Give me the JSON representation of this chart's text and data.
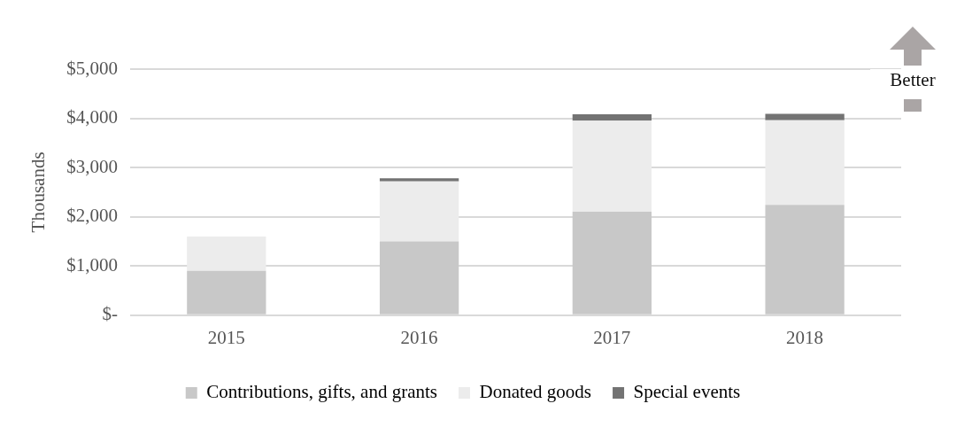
{
  "chart_data": {
    "type": "bar",
    "ylabel": "Thousands",
    "categories": [
      "2015",
      "2016",
      "2017",
      "2018"
    ],
    "stacked": true,
    "series": [
      {
        "name": "Contributions, gifts, and grants",
        "color": "#c8c8c8",
        "values": [
          900,
          1500,
          2100,
          2240
        ]
      },
      {
        "name": "Donated goods",
        "color": "#ececec",
        "values": [
          700,
          1220,
          1850,
          1720
        ]
      },
      {
        "name": "Special events",
        "color": "#737373",
        "values": [
          0,
          60,
          130,
          130
        ]
      }
    ],
    "ylim": [
      0,
      5000
    ],
    "yticks": [
      {
        "value": 0,
        "label": "$-"
      },
      {
        "value": 1000,
        "label": "$1,000"
      },
      {
        "value": 2000,
        "label": "$2,000"
      },
      {
        "value": 3000,
        "label": "$3,000"
      },
      {
        "value": 4000,
        "label": "$4,000"
      },
      {
        "value": 5000,
        "label": "$5,000"
      }
    ],
    "grid": "y",
    "legend": "bottom",
    "annotations": [
      "Better"
    ]
  }
}
